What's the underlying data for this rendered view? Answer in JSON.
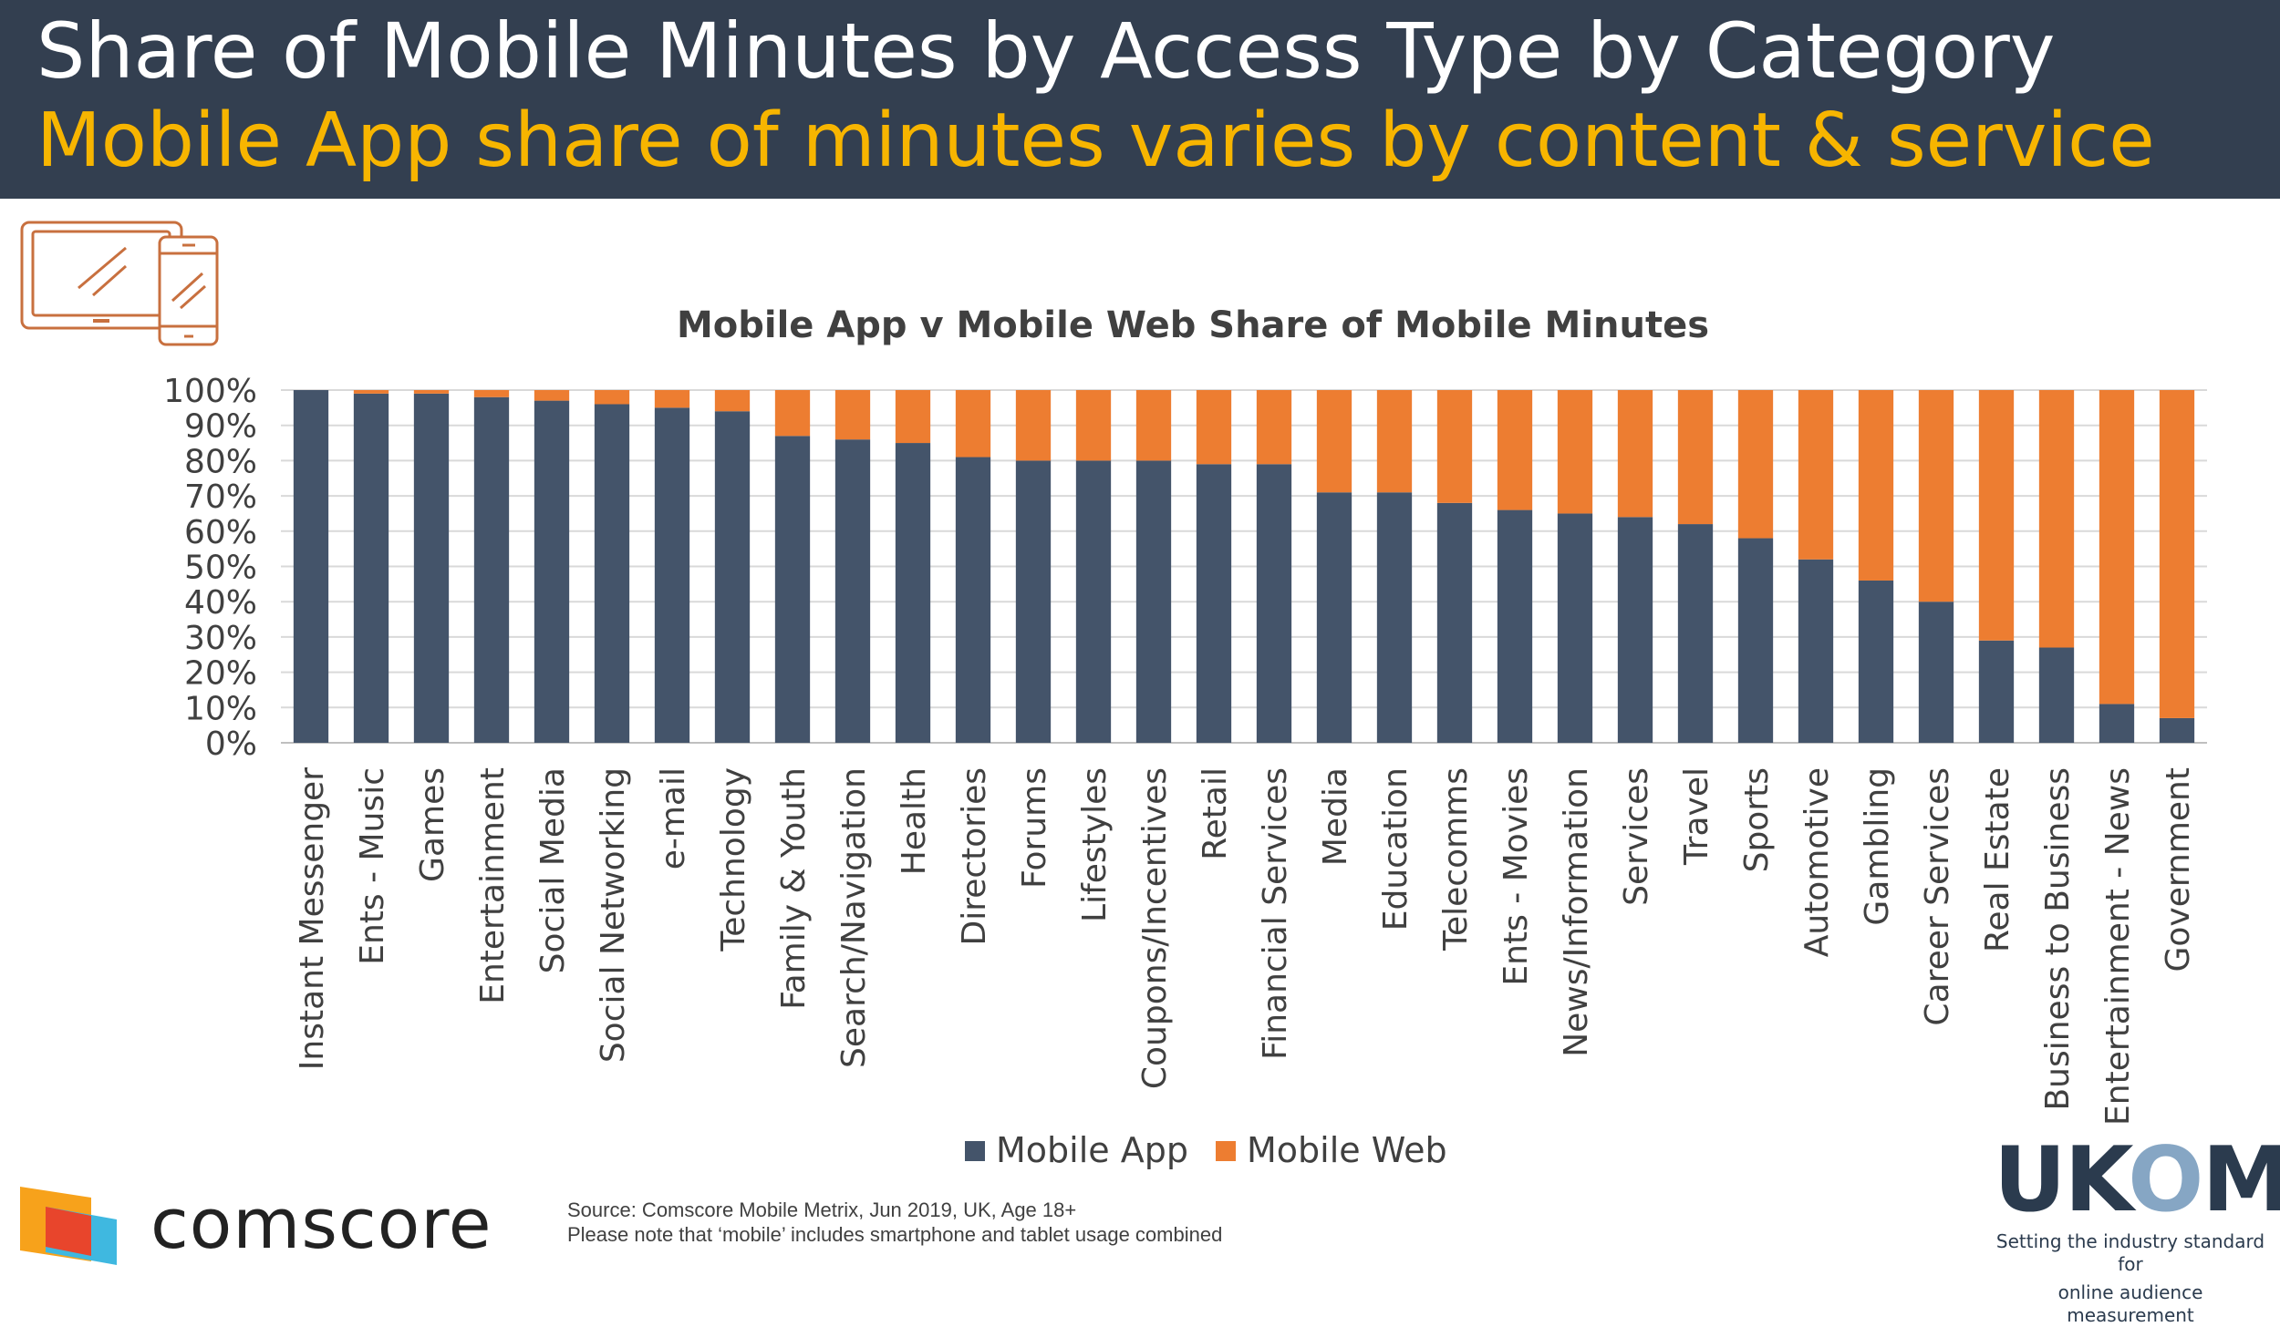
{
  "header": {
    "title": "Share of Mobile Minutes by Access Type by Category",
    "subtitle": "Mobile App share of minutes varies by content & service"
  },
  "icons": {
    "devices": "laptop-phone-icon",
    "comscore": "comscore-logo-mark"
  },
  "colors": {
    "header_bg": "#333f50",
    "subtitle": "#f7b500",
    "mobile_app": "#44546a",
    "mobile_web": "#ed7d31"
  },
  "chart_data": {
    "type": "bar",
    "stacked": true,
    "title": "Mobile App v Mobile Web Share of Mobile Minutes",
    "xlabel": "",
    "ylabel": "",
    "ylim": [
      0,
      100
    ],
    "yticks": [
      "0%",
      "10%",
      "20%",
      "30%",
      "40%",
      "50%",
      "60%",
      "70%",
      "80%",
      "90%",
      "100%"
    ],
    "grid": true,
    "legend_position": "bottom",
    "categories": [
      "Instant Messenger",
      "Ents - Music",
      "Games",
      "Entertainment",
      "Social Media",
      "Social Networking",
      "e-mail",
      "Technology",
      "Family & Youth",
      "Search/Navigation",
      "Health",
      "Directories",
      "Forums",
      "Lifestyles",
      "Coupons/Incentives",
      "Retail",
      "Financial Services",
      "Media",
      "Education",
      "Telecomms",
      "Ents - Movies",
      "News/Information",
      "Services",
      "Travel",
      "Sports",
      "Automotive",
      "Gambling",
      "Career Services",
      "Real Estate",
      "Business to Business",
      "Entertainment - News",
      "Government"
    ],
    "series": [
      {
        "name": "Mobile App",
        "color": "#44546a",
        "values": [
          100,
          99,
          99,
          98,
          97,
          96,
          95,
          94,
          87,
          86,
          85,
          81,
          80,
          80,
          80,
          79,
          79,
          71,
          71,
          68,
          66,
          65,
          64,
          62,
          58,
          52,
          46,
          40,
          29,
          27,
          11,
          7
        ]
      },
      {
        "name": "Mobile Web",
        "color": "#ed7d31",
        "values": [
          0,
          1,
          1,
          2,
          3,
          4,
          5,
          6,
          13,
          14,
          15,
          19,
          20,
          20,
          20,
          21,
          21,
          29,
          29,
          32,
          34,
          35,
          36,
          38,
          42,
          48,
          54,
          60,
          71,
          73,
          89,
          93
        ]
      }
    ]
  },
  "footer": {
    "comscore": "comscore",
    "source_line1": "Source: Comscore Mobile Metrix, Jun 2019, UK, Age 18+",
    "source_line2": "Please note that ‘mobile’ includes smartphone and tablet usage combined",
    "ukom_name_a": "UK",
    "ukom_name_o": "O",
    "ukom_name_b": "M",
    "ukom_tag1": "Setting the industry standard for",
    "ukom_tag2": "online audience measurement"
  }
}
